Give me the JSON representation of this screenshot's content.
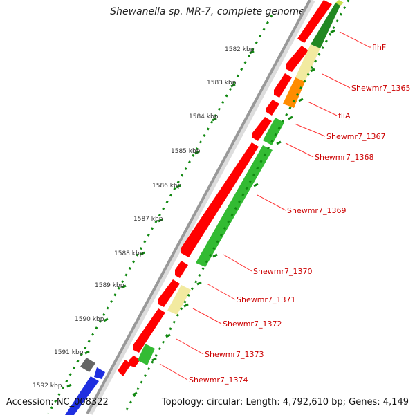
{
  "title": "Shewanella sp. MR-7, complete genome",
  "accession": "Accession: NC_008322",
  "topology": "Topology: circular; Length: 4,792,610 bp; Genes: 4,149",
  "ticks": [
    "1582 kbp",
    "1583 kbp",
    "1584 kbp",
    "1585 kbp",
    "1586 kbp",
    "1587 kbp",
    "1588 kbp",
    "1589 kbp",
    "1590 kbp",
    "1591 kbp",
    "1592 kbp"
  ],
  "gene_labels": [
    "flhF",
    "Shewmr7_1365",
    "fliA",
    "Shewmr7_1367",
    "Shewmr7_1368",
    "Shewmr7_1369",
    "Shewmr7_1370",
    "Shewmr7_1371",
    "Shewmr7_1372",
    "Shewmr7_1373",
    "Shewmr7_1374"
  ],
  "colors": {
    "cds_forward": "#ff0000",
    "gene_green": "#33bb33",
    "gene_dark_green": "#228822",
    "gene_pale_yellow": "#f2eaa0",
    "gene_orange": "#ff8c00",
    "gene_blue": "#1f2fe0",
    "gene_grey": "#666666",
    "backbone": "#aaaaaa",
    "tick_color": "#118811",
    "label_color": "#cc0000"
  }
}
